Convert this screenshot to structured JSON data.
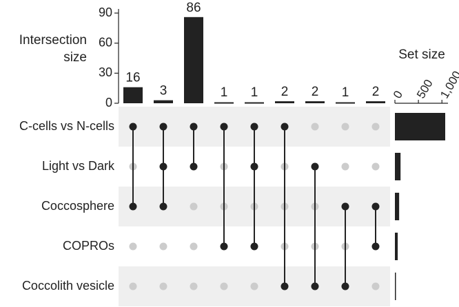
{
  "chart_data": {
    "type": "upset",
    "ylabel": "Intersection size",
    "ylim": [
      0,
      90
    ],
    "yticks": [
      0,
      30,
      60,
      90
    ],
    "bar_color": "#222222",
    "dot_color": "#222222",
    "empty_dot_color": "#cccccc",
    "band_color": "#efefef",
    "sets": [
      {
        "name": "C-cells vs N-cells",
        "size": 1070
      },
      {
        "name": "Light vs Dark",
        "size": 120
      },
      {
        "name": "Coccosphere",
        "size": 90
      },
      {
        "name": "COPROs",
        "size": 60
      },
      {
        "name": "Coccolith vesicle",
        "size": 20
      }
    ],
    "set_size_label": "Set size",
    "set_size_lim": [
      0,
      1070
    ],
    "set_size_ticks": [
      0,
      500,
      {
        "value": 1000,
        "label": "1,000"
      }
    ],
    "intersections": [
      {
        "sets": [
          0,
          2
        ],
        "value": 16
      },
      {
        "sets": [
          0,
          1,
          2
        ],
        "value": 3
      },
      {
        "sets": [
          0,
          1
        ],
        "value": 86
      },
      {
        "sets": [
          0,
          3
        ],
        "value": 1
      },
      {
        "sets": [
          0,
          1,
          3
        ],
        "value": 1
      },
      {
        "sets": [
          0,
          4
        ],
        "value": 2
      },
      {
        "sets": [
          1,
          4
        ],
        "value": 2
      },
      {
        "sets": [
          2,
          4
        ],
        "value": 1
      },
      {
        "sets": [
          2,
          3
        ],
        "value": 2
      }
    ]
  }
}
